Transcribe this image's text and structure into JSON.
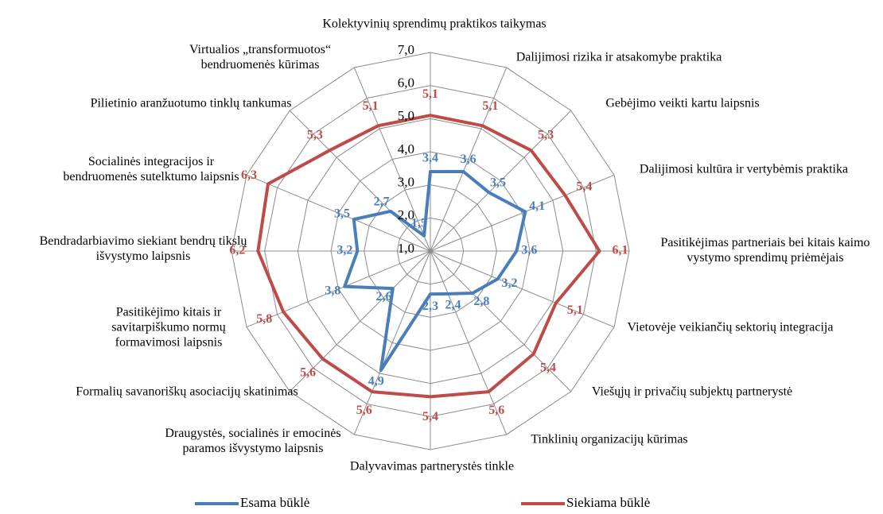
{
  "chart_data": {
    "type": "radar",
    "categories": [
      "Kolektyvinių sprendimų praktikos taikymas",
      "Dalijimosi rizika ir atsakomybe praktika",
      "Gebėjimo veikti kartu laipsnis",
      "Dalijimosi kultūra ir vertybėmis praktika",
      "Pasitikėjimas partneriais bei kitais kaimo vystymo sprendimų priėmėjais",
      "Vietovėje veikiančių sektorių integracija",
      "Viešųjų ir privačių subjektų partnerystė",
      "Tinklinių organizacijų kūrimas",
      "Dalyvavimas partnerystės tinkle",
      "Draugystės, socialinės ir emocinės paramos išvystymo laipsnis",
      "Formalių savanoriškų asociacijų skatinimas",
      "Pasitikėjimo kitais ir savitarpiškumo normų formavimosi laipsnis",
      "Bendradarbiavimo siekiant bendrų tikslų išvystymo laipsnis",
      "Socialinės integracijos ir bendruomenės sutelktumo laipsnis",
      "Pilietinio aranžuotumo tinklų tankumas",
      "Virtualios „transformuotos“ bendruomenės kūrimas"
    ],
    "series": [
      {
        "name": "Esama būklė",
        "color": "#4a7ebb",
        "values": [
          3.4,
          3.6,
          3.5,
          4.1,
          3.6,
          3.2,
          2.8,
          2.4,
          2.3,
          4.9,
          2.6,
          3.8,
          3.2,
          3.5,
          2.7,
          1.5
        ],
        "value_labels": [
          "3,4",
          "3,6",
          "3,5",
          "4,1",
          "3,6",
          "3,2",
          "2,8",
          "2,4",
          "2,3",
          "4,9",
          "2,6",
          "3,8",
          "3,2",
          "3,5",
          "2,7",
          "1,5"
        ]
      },
      {
        "name": "Siekiama būklė",
        "color": "#be4b48",
        "values": [
          5.1,
          5.1,
          5.3,
          5.4,
          6.1,
          5.1,
          5.4,
          5.6,
          5.4,
          5.6,
          5.6,
          5.8,
          6.2,
          6.3,
          5.3,
          5.1
        ],
        "value_labels": [
          "5,1",
          "5,1",
          "5,3",
          "5,4",
          "6,1",
          "5,1",
          "5,4",
          "5,6",
          "5,4",
          "5,6",
          "5,6",
          "5,8",
          "6,2",
          "6,3",
          "5,3",
          "5,1"
        ]
      }
    ],
    "ylim": [
      1,
      7
    ],
    "yticks": [
      {
        "value": 1,
        "label": "1,0"
      },
      {
        "value": 2,
        "label": "2,0"
      },
      {
        "value": 3,
        "label": "3,0"
      },
      {
        "value": 4,
        "label": "4,0"
      },
      {
        "value": 5,
        "label": "5,0"
      },
      {
        "value": 6,
        "label": "6,0"
      },
      {
        "value": 7,
        "label": "7,0"
      }
    ],
    "grid": true,
    "legend": "bottom"
  }
}
